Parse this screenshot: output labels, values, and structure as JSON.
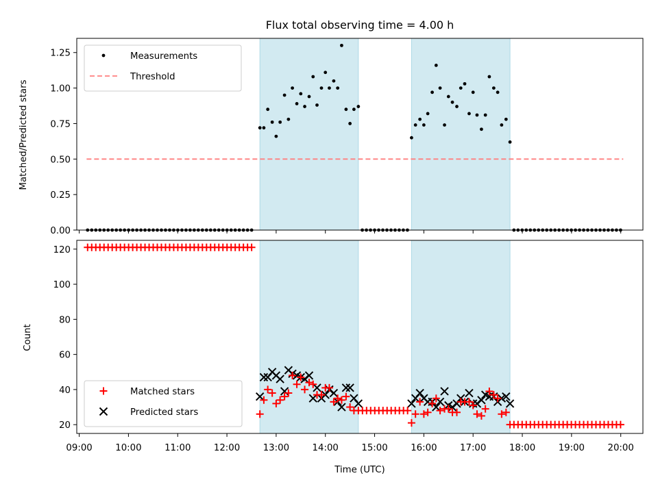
{
  "title": "Flux total observing time = 4.00 h",
  "colors": {
    "shade": "#add8e6",
    "measurement": "#000000",
    "threshold": "#ff7f7f",
    "matched": "#ff0000",
    "predicted": "#000000"
  },
  "chart_data": [
    {
      "type": "scatter",
      "name": "ratio-panel",
      "ylabel": "Matched/Predicted stars",
      "xlabel": "",
      "ylim": [
        0,
        1.35
      ],
      "yticks": [
        0.0,
        0.25,
        0.5,
        0.75,
        1.0,
        1.25
      ],
      "ytick_labels": [
        "0.00",
        "0.25",
        "0.50",
        "0.75",
        "1.00",
        "1.25"
      ],
      "legend": {
        "placement": "upper-left",
        "entries": [
          "Measurements",
          "Threshold"
        ]
      },
      "threshold": {
        "label": "Threshold",
        "value": 0.5,
        "x_start_h": 9.15,
        "x_end_h": 20.05
      },
      "series": [
        {
          "name": "Measurements",
          "marker": "dot",
          "ref": "measurements"
        }
      ]
    },
    {
      "type": "scatter",
      "name": "count-panel",
      "ylabel": "Count",
      "xlabel": "Time (UTC)",
      "ylim": [
        15,
        125
      ],
      "yticks": [
        20,
        40,
        60,
        80,
        100,
        120
      ],
      "ytick_labels": [
        "20",
        "40",
        "60",
        "80",
        "100",
        "120"
      ],
      "legend": {
        "placement": "lower-left",
        "entries": [
          "Matched stars",
          "Predicted stars"
        ]
      },
      "series": [
        {
          "name": "Matched stars",
          "marker": "plus",
          "ref": "matched"
        },
        {
          "name": "Predicted stars",
          "marker": "x",
          "ref": "predicted"
        }
      ]
    }
  ],
  "x_axis": {
    "unit": "hours UTC",
    "xlim": [
      8.95,
      20.45
    ],
    "ticks": [
      9,
      10,
      11,
      12,
      13,
      14,
      15,
      16,
      17,
      18,
      19,
      20
    ],
    "tick_labels": [
      "09:00",
      "10:00",
      "11:00",
      "12:00",
      "13:00",
      "14:00",
      "15:00",
      "16:00",
      "17:00",
      "18:00",
      "19:00",
      "20:00"
    ]
  },
  "shaded_intervals_h": [
    [
      12.67,
      14.67
    ],
    [
      15.75,
      17.75
    ]
  ],
  "measurements": {
    "zero_ranges_h": [
      [
        9.17,
        12.58,
        0.0833
      ],
      [
        14.75,
        15.67,
        0.0833
      ],
      [
        17.83,
        20.0,
        0.0833
      ]
    ],
    "points": [
      [
        12.67,
        0.72
      ],
      [
        12.75,
        0.72
      ],
      [
        12.83,
        0.85
      ],
      [
        12.92,
        0.76
      ],
      [
        13.0,
        0.66
      ],
      [
        13.08,
        0.76
      ],
      [
        13.17,
        0.95
      ],
      [
        13.25,
        0.78
      ],
      [
        13.33,
        1.0
      ],
      [
        13.42,
        0.89
      ],
      [
        13.5,
        0.96
      ],
      [
        13.58,
        0.87
      ],
      [
        13.67,
        0.94
      ],
      [
        13.75,
        1.08
      ],
      [
        13.83,
        0.88
      ],
      [
        13.92,
        1.0
      ],
      [
        14.0,
        1.11
      ],
      [
        14.08,
        1.0
      ],
      [
        14.17,
        1.05
      ],
      [
        14.25,
        1.0
      ],
      [
        14.33,
        1.3
      ],
      [
        14.42,
        0.85
      ],
      [
        14.5,
        0.75
      ],
      [
        14.58,
        0.85
      ],
      [
        14.67,
        0.87
      ],
      [
        15.75,
        0.65
      ],
      [
        15.83,
        0.74
      ],
      [
        15.92,
        0.78
      ],
      [
        16.0,
        0.74
      ],
      [
        16.08,
        0.82
      ],
      [
        16.17,
        0.97
      ],
      [
        16.25,
        1.16
      ],
      [
        16.33,
        1.0
      ],
      [
        16.42,
        0.74
      ],
      [
        16.5,
        0.94
      ],
      [
        16.58,
        0.9
      ],
      [
        16.67,
        0.87
      ],
      [
        16.75,
        1.0
      ],
      [
        16.83,
        1.03
      ],
      [
        16.92,
        0.82
      ],
      [
        17.0,
        0.97
      ],
      [
        17.08,
        0.81
      ],
      [
        17.17,
        0.71
      ],
      [
        17.25,
        0.81
      ],
      [
        17.33,
        1.08
      ],
      [
        17.42,
        1.0
      ],
      [
        17.5,
        0.97
      ],
      [
        17.58,
        0.74
      ],
      [
        17.67,
        0.78
      ],
      [
        17.75,
        0.62
      ]
    ]
  },
  "matched": {
    "const_ranges_h": [
      [
        9.17,
        12.58,
        0.0833,
        121
      ],
      [
        14.67,
        15.67,
        0.0833,
        28
      ],
      [
        17.83,
        20.0,
        0.0833,
        20
      ]
    ],
    "points": [
      [
        12.67,
        26
      ],
      [
        12.75,
        34
      ],
      [
        12.83,
        40
      ],
      [
        12.92,
        38
      ],
      [
        13.0,
        32
      ],
      [
        13.08,
        34
      ],
      [
        13.17,
        36
      ],
      [
        13.25,
        38
      ],
      [
        13.33,
        48
      ],
      [
        13.42,
        43
      ],
      [
        13.5,
        47
      ],
      [
        13.58,
        40
      ],
      [
        13.67,
        44
      ],
      [
        13.75,
        43
      ],
      [
        13.83,
        37
      ],
      [
        13.92,
        37
      ],
      [
        14.0,
        41
      ],
      [
        14.08,
        41
      ],
      [
        14.17,
        33
      ],
      [
        14.25,
        35
      ],
      [
        14.33,
        34
      ],
      [
        14.42,
        36
      ],
      [
        14.5,
        30
      ],
      [
        14.58,
        28
      ],
      [
        15.75,
        21
      ],
      [
        15.83,
        26
      ],
      [
        15.92,
        33
      ],
      [
        16.0,
        26
      ],
      [
        16.08,
        27
      ],
      [
        16.17,
        32
      ],
      [
        16.25,
        35
      ],
      [
        16.33,
        28
      ],
      [
        16.42,
        29
      ],
      [
        16.5,
        29
      ],
      [
        16.58,
        27
      ],
      [
        16.67,
        27
      ],
      [
        16.75,
        33
      ],
      [
        16.83,
        33
      ],
      [
        16.92,
        33
      ],
      [
        17.0,
        31
      ],
      [
        17.08,
        26
      ],
      [
        17.17,
        25
      ],
      [
        17.25,
        29
      ],
      [
        17.33,
        39
      ],
      [
        17.42,
        37
      ],
      [
        17.5,
        35
      ],
      [
        17.58,
        26
      ],
      [
        17.67,
        27
      ],
      [
        17.75,
        20
      ]
    ]
  },
  "predicted": {
    "points": [
      [
        12.67,
        36
      ],
      [
        12.75,
        47
      ],
      [
        12.83,
        47
      ],
      [
        12.92,
        50
      ],
      [
        13.0,
        48
      ],
      [
        13.08,
        46
      ],
      [
        13.17,
        39
      ],
      [
        13.25,
        51
      ],
      [
        13.33,
        49
      ],
      [
        13.42,
        48
      ],
      [
        13.5,
        47
      ],
      [
        13.58,
        46
      ],
      [
        13.67,
        48
      ],
      [
        13.75,
        35
      ],
      [
        13.83,
        41
      ],
      [
        13.92,
        35
      ],
      [
        14.0,
        37
      ],
      [
        14.08,
        40
      ],
      [
        14.17,
        38
      ],
      [
        14.25,
        33
      ],
      [
        14.33,
        30
      ],
      [
        14.42,
        41
      ],
      [
        14.5,
        41
      ],
      [
        14.58,
        35
      ],
      [
        14.67,
        32
      ],
      [
        15.75,
        32
      ],
      [
        15.83,
        35
      ],
      [
        15.92,
        38
      ],
      [
        16.0,
        35
      ],
      [
        16.08,
        33
      ],
      [
        16.17,
        33
      ],
      [
        16.25,
        30
      ],
      [
        16.33,
        33
      ],
      [
        16.42,
        39
      ],
      [
        16.5,
        31
      ],
      [
        16.58,
        30
      ],
      [
        16.67,
        32
      ],
      [
        16.75,
        35
      ],
      [
        16.83,
        33
      ],
      [
        16.92,
        38
      ],
      [
        17.0,
        32
      ],
      [
        17.08,
        32
      ],
      [
        17.17,
        34
      ],
      [
        17.25,
        37
      ],
      [
        17.33,
        36
      ],
      [
        17.42,
        36
      ],
      [
        17.5,
        33
      ],
      [
        17.58,
        35
      ],
      [
        17.67,
        36
      ],
      [
        17.75,
        32
      ]
    ]
  }
}
